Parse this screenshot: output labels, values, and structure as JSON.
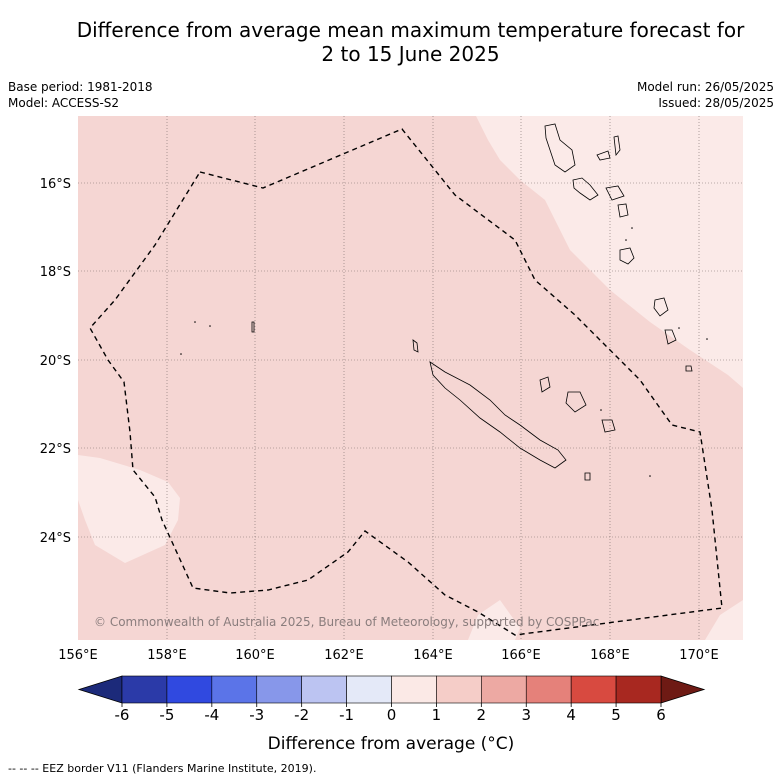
{
  "title_line1": "Difference from average mean maximum temperature forecast for",
  "title_line2": "2 to 15 June 2025",
  "base_period": "Base period: 1981-2018",
  "model": "Model: ACCESS-S2",
  "model_run": "Model run: 26/05/2025",
  "issued": "Issued: 28/05/2025",
  "lat_labels": [
    "16°S",
    "18°S",
    "20°S",
    "22°S",
    "24°S"
  ],
  "lon_labels": [
    "156°E",
    "158°E",
    "160°E",
    "162°E",
    "164°E",
    "166°E",
    "168°E",
    "170°E"
  ],
  "copyright": "© Commonwealth of Australia 2025, Bureau of Meteorology, supported by COSPPac",
  "colorbar": {
    "ticks": [
      "-6",
      "-5",
      "-4",
      "-3",
      "-2",
      "-1",
      "0",
      "1",
      "2",
      "3",
      "4",
      "5",
      "6"
    ],
    "label": "Difference from average (°C)",
    "colors": [
      "#2b3aa8",
      "#3049e0",
      "#5b74e8",
      "#8797ea",
      "#bcc4f2",
      "#e4e9f8",
      "#fbe9e6",
      "#f5cdc8",
      "#eda9a3",
      "#e5817a",
      "#d84a40",
      "#a82820"
    ],
    "low_extend_color": "#1c2a7a",
    "high_extend_color": "#6e1a14"
  },
  "footnote": "-- -- -- EEZ border V11 (Flanders Marine Institute, 2019)."
}
